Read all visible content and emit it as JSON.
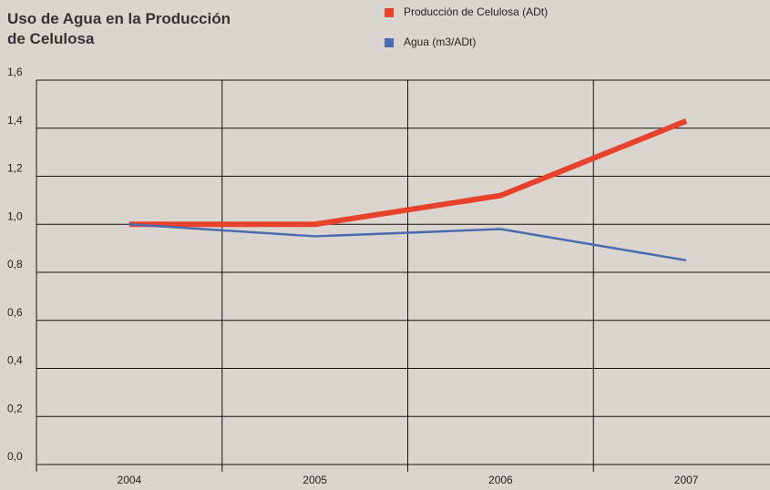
{
  "chart_data": {
    "type": "line",
    "title": "Uso de Agua en la Producción de Celulosa",
    "categories": [
      "2004",
      "2005",
      "2006",
      "2007"
    ],
    "series": [
      {
        "name": "Producción de Celulosa (ADt)",
        "color": "#e8412c",
        "width": 6,
        "values": [
          1.0,
          1.0,
          1.12,
          1.43
        ]
      },
      {
        "name": "Agua (m3/ADt)",
        "color": "#4a6bb0",
        "width": 2.5,
        "values": [
          1.0,
          0.95,
          0.98,
          0.85
        ]
      }
    ],
    "ylim": [
      0,
      1.6
    ],
    "yticks": [
      {
        "value": 0,
        "label": "0,0"
      },
      {
        "value": 0.2,
        "label": "0,2"
      },
      {
        "value": 0.4,
        "label": "0,4"
      },
      {
        "value": 0.6,
        "label": "0,6"
      },
      {
        "value": 0.8,
        "label": "0,8"
      },
      {
        "value": 1.0,
        "label": "1,0"
      },
      {
        "value": 1.2,
        "label": "1,2"
      },
      {
        "value": 1.4,
        "label": "1,4"
      },
      {
        "value": 1.6,
        "label": "1,6"
      }
    ],
    "grid": true
  }
}
